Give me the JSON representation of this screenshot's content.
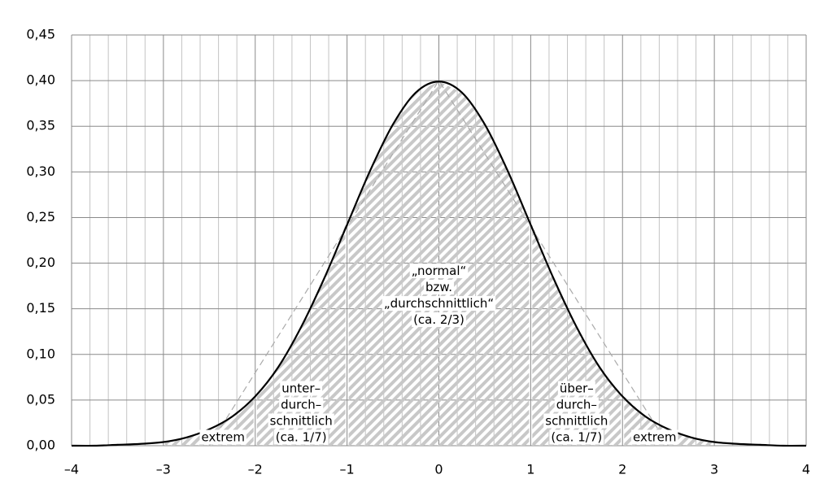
{
  "chart_data": {
    "type": "area",
    "x": [
      -4,
      -3.75,
      -3.5,
      -3.25,
      -3,
      -2.75,
      -2.5,
      -2.25,
      -2,
      -1.75,
      -1.5,
      -1.25,
      -1,
      -0.75,
      -0.5,
      -0.25,
      0,
      0.25,
      0.5,
      0.75,
      1,
      1.25,
      1.5,
      1.75,
      2,
      2.25,
      2.5,
      2.75,
      3,
      3.25,
      3.5,
      3.75,
      4
    ],
    "series": [
      {
        "color": "#000000",
        "values": [
          0.0,
          0.0,
          0.001,
          0.002,
          0.004,
          0.009,
          0.018,
          0.032,
          0.054,
          0.086,
          0.13,
          0.183,
          0.242,
          0.301,
          0.352,
          0.387,
          0.399,
          0.387,
          0.352,
          0.301,
          0.242,
          0.183,
          0.13,
          0.086,
          0.054,
          0.032,
          0.018,
          0.009,
          0.004,
          0.002,
          0.001,
          0.0,
          0.0
        ]
      }
    ],
    "reference_line": {
      "color": "#aaaaaa",
      "x": [
        -2.5,
        0,
        2.5
      ],
      "values": [
        0,
        0.4,
        0
      ]
    },
    "regions": [
      {
        "from": -3,
        "to": -2,
        "label": [
          "extrem"
        ]
      },
      {
        "from": -2,
        "to": -1,
        "label": [
          "unter–",
          "durch–",
          "schnittlich",
          "(ca. 1/7)"
        ]
      },
      {
        "from": -1,
        "to": 1,
        "label": [
          "„normal“",
          "bzw.",
          "„durchschnittlich“",
          "(ca. 2/3)"
        ]
      },
      {
        "from": 1,
        "to": 2,
        "label": [
          "über–",
          "durch–",
          "schnittlich",
          "(ca. 1/7)"
        ]
      },
      {
        "from": 2,
        "to": 3,
        "label": [
          "extrem"
        ]
      }
    ],
    "hatch_color": "#c8c8c8",
    "xlim": [
      -4,
      4
    ],
    "xticks": [
      {
        "value": -4,
        "label": "–4"
      },
      {
        "value": -3,
        "label": "–3"
      },
      {
        "value": -2,
        "label": "–2"
      },
      {
        "value": -1,
        "label": "–1"
      },
      0,
      1,
      2,
      3,
      4
    ],
    "x_minor_ticks": [
      -3.8,
      -3.6,
      -3.4,
      -3.2,
      -2.8,
      -2.6,
      -2.4,
      -2.2,
      -1.8,
      -1.6,
      -1.4,
      -1.2,
      -0.8,
      -0.6,
      -0.4,
      -0.2,
      0.2,
      0.4,
      0.6,
      0.8,
      1.2,
      1.4,
      1.6,
      1.8,
      2.2,
      2.4,
      2.6,
      2.8,
      3.2,
      3.4,
      3.6,
      3.8
    ],
    "ylim": [
      0,
      0.45
    ],
    "yticks": [
      {
        "value": 0,
        "label": "0,00"
      },
      {
        "value": 0.05,
        "label": "0,05"
      },
      {
        "value": 0.1,
        "label": "0,10"
      },
      {
        "value": 0.15,
        "label": "0,15"
      },
      {
        "value": 0.2,
        "label": "0,20"
      },
      {
        "value": 0.25,
        "label": "0,25"
      },
      {
        "value": 0.3,
        "label": "0,30"
      },
      {
        "value": 0.35,
        "label": "0,35"
      },
      {
        "value": 0.4,
        "label": "0,40"
      },
      {
        "value": 0.45,
        "label": "0,45"
      }
    ],
    "grid": true
  }
}
